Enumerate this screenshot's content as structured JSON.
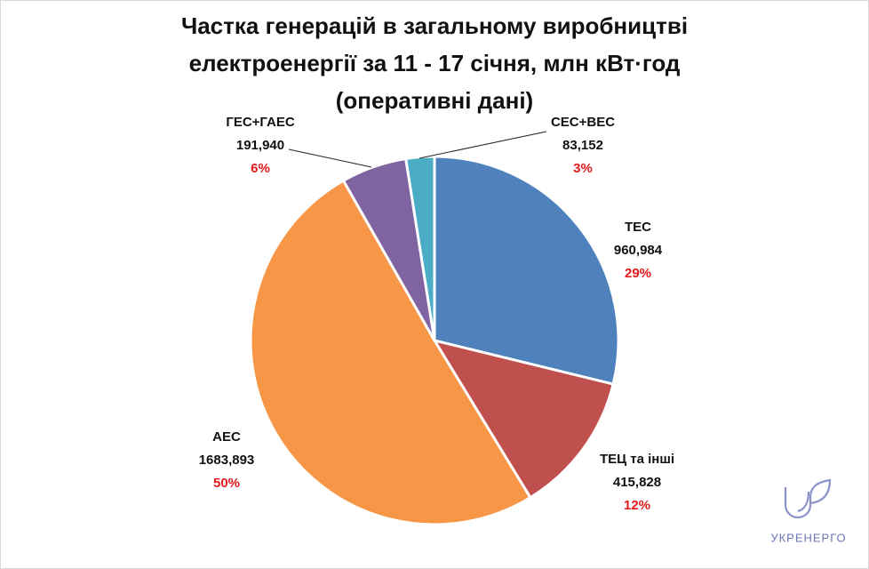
{
  "chart_data": {
    "type": "pie",
    "title": [
      "Частка генерацій в загальному виробництві",
      "електроенергії за 11 - 17 січня, млн кВт·год",
      "(оперативні дані)"
    ],
    "categories": [
      "ТЕС",
      "ТЕЦ та інші",
      "АЕС",
      "ГЕС+ГАЕС",
      "СЕС+ВЕС"
    ],
    "values": [
      960.984,
      415.828,
      1683.893,
      191.94,
      83.152
    ],
    "value_labels": [
      "960,984",
      "415,828",
      "1683,893",
      "191,940",
      "83,152"
    ],
    "percent_labels": [
      "29%",
      "12%",
      "50%",
      "6%",
      "3%"
    ],
    "colors": [
      "#4f81bd",
      "#c0504d",
      "#f79646",
      "#8064a2",
      "#4bacc6"
    ]
  },
  "logo": {
    "text": "УКРЕНЕРГО"
  }
}
